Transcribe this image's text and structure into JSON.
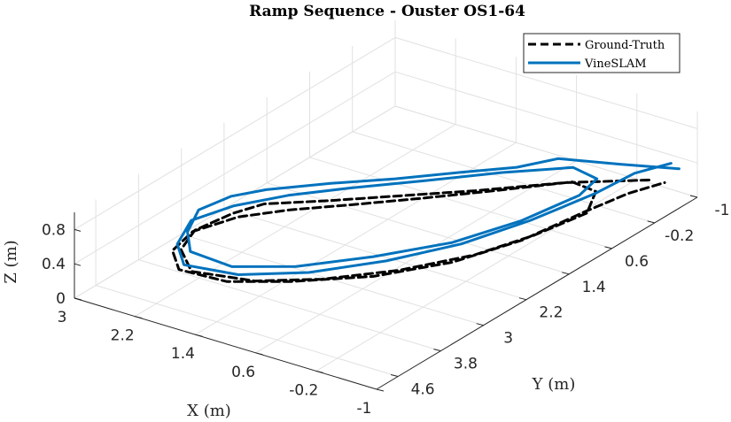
{
  "chart_data": {
    "type": "line",
    "projection": "3d",
    "title": "Ramp Sequence - Ouster OS1-64",
    "xlabel": "X (m)",
    "ylabel": "Y (m)",
    "zlabel": "Z (m)",
    "xlim": [
      -1,
      3
    ],
    "ylim": [
      -1,
      5
    ],
    "zlim": [
      0,
      1
    ],
    "x_ticks": [
      "3",
      "2.2",
      "1.4",
      "0.6",
      "-0.2",
      "-1"
    ],
    "y_ticks": [
      "-1",
      "-0.2",
      "0.6",
      "1.4",
      "2.2",
      "3",
      "3.8",
      "4.6"
    ],
    "z_ticks": [
      "0",
      "0.4",
      "0.8"
    ],
    "grid": true,
    "legend_position": "top-right",
    "colors": {
      "ground_truth": "#000000",
      "vineslam": "#0072bd"
    },
    "series": [
      {
        "name": "Ground-Truth",
        "style": "dashed",
        "points": [
          [
            -0.75,
            -0.45,
            0.34
          ],
          [
            -0.1,
            0.2,
            0.38
          ],
          [
            0.6,
            0.9,
            0.36
          ],
          [
            1.2,
            1.4,
            0.33
          ],
          [
            1.8,
            1.9,
            0.3
          ],
          [
            2.4,
            2.3,
            0.25
          ],
          [
            2.6,
            2.6,
            0.2
          ],
          [
            2.75,
            3.1,
            0.15
          ],
          [
            2.65,
            3.5,
            0.1
          ],
          [
            2.3,
            3.8,
            0.05
          ],
          [
            1.6,
            3.6,
            0.05
          ],
          [
            1.0,
            3.2,
            0.08
          ],
          [
            0.4,
            2.6,
            0.12
          ],
          [
            -0.1,
            1.9,
            0.17
          ],
          [
            -0.4,
            1.2,
            0.22
          ],
          [
            -0.6,
            0.5,
            0.27
          ],
          [
            -0.4,
            0.05,
            0.3
          ],
          [
            -0.05,
            0.0,
            0.3
          ],
          [
            0.5,
            0.6,
            0.28
          ],
          [
            1.1,
            1.2,
            0.25
          ],
          [
            1.7,
            1.7,
            0.2
          ],
          [
            2.2,
            2.1,
            0.16
          ],
          [
            2.6,
            2.5,
            0.12
          ],
          [
            2.85,
            3.0,
            0.07
          ],
          [
            2.8,
            3.45,
            0.03
          ],
          [
            2.5,
            3.75,
            0.0
          ],
          [
            1.9,
            3.7,
            0.0
          ],
          [
            1.3,
            3.35,
            0.03
          ],
          [
            0.6,
            2.8,
            0.07
          ],
          [
            0.05,
            2.1,
            0.12
          ],
          [
            -0.3,
            1.3,
            0.17
          ],
          [
            -0.5,
            0.4,
            0.22
          ],
          [
            -0.65,
            -0.2,
            0.25
          ],
          [
            -0.85,
            -0.6,
            0.28
          ]
        ]
      },
      {
        "name": "VineSLAM",
        "style": "solid",
        "points": [
          [
            -0.9,
            -0.8,
            0.38
          ],
          [
            -0.4,
            -0.4,
            0.45
          ],
          [
            0.1,
            0.05,
            0.55
          ],
          [
            0.4,
            0.4,
            0.5
          ],
          [
            0.8,
            0.9,
            0.52
          ],
          [
            1.3,
            1.4,
            0.5
          ],
          [
            1.8,
            1.9,
            0.5
          ],
          [
            2.3,
            2.4,
            0.48
          ],
          [
            2.55,
            2.7,
            0.45
          ],
          [
            2.7,
            3.1,
            0.4
          ],
          [
            2.6,
            3.45,
            0.3
          ],
          [
            2.35,
            3.75,
            0.25
          ],
          [
            1.8,
            3.75,
            0.22
          ],
          [
            1.2,
            3.4,
            0.25
          ],
          [
            0.6,
            2.8,
            0.3
          ],
          [
            0.05,
            2.1,
            0.35
          ],
          [
            -0.3,
            1.3,
            0.4
          ],
          [
            -0.5,
            0.5,
            0.45
          ],
          [
            -0.45,
            0.1,
            0.48
          ],
          [
            -0.1,
            0.05,
            0.5
          ],
          [
            0.45,
            0.6,
            0.5
          ],
          [
            1.05,
            1.2,
            0.47
          ],
          [
            1.65,
            1.75,
            0.43
          ],
          [
            2.15,
            2.2,
            0.38
          ],
          [
            2.55,
            2.65,
            0.32
          ],
          [
            2.8,
            3.1,
            0.25
          ],
          [
            2.7,
            3.5,
            0.15
          ],
          [
            2.4,
            3.8,
            0.1
          ],
          [
            1.75,
            3.7,
            0.12
          ],
          [
            1.1,
            3.3,
            0.17
          ],
          [
            0.5,
            2.7,
            0.24
          ],
          [
            0.0,
            2.0,
            0.31
          ],
          [
            -0.35,
            1.2,
            0.38
          ],
          [
            -0.6,
            0.35,
            0.44
          ],
          [
            -0.7,
            -0.25,
            0.48
          ],
          [
            -0.9,
            -0.65,
            0.5
          ]
        ]
      }
    ]
  }
}
